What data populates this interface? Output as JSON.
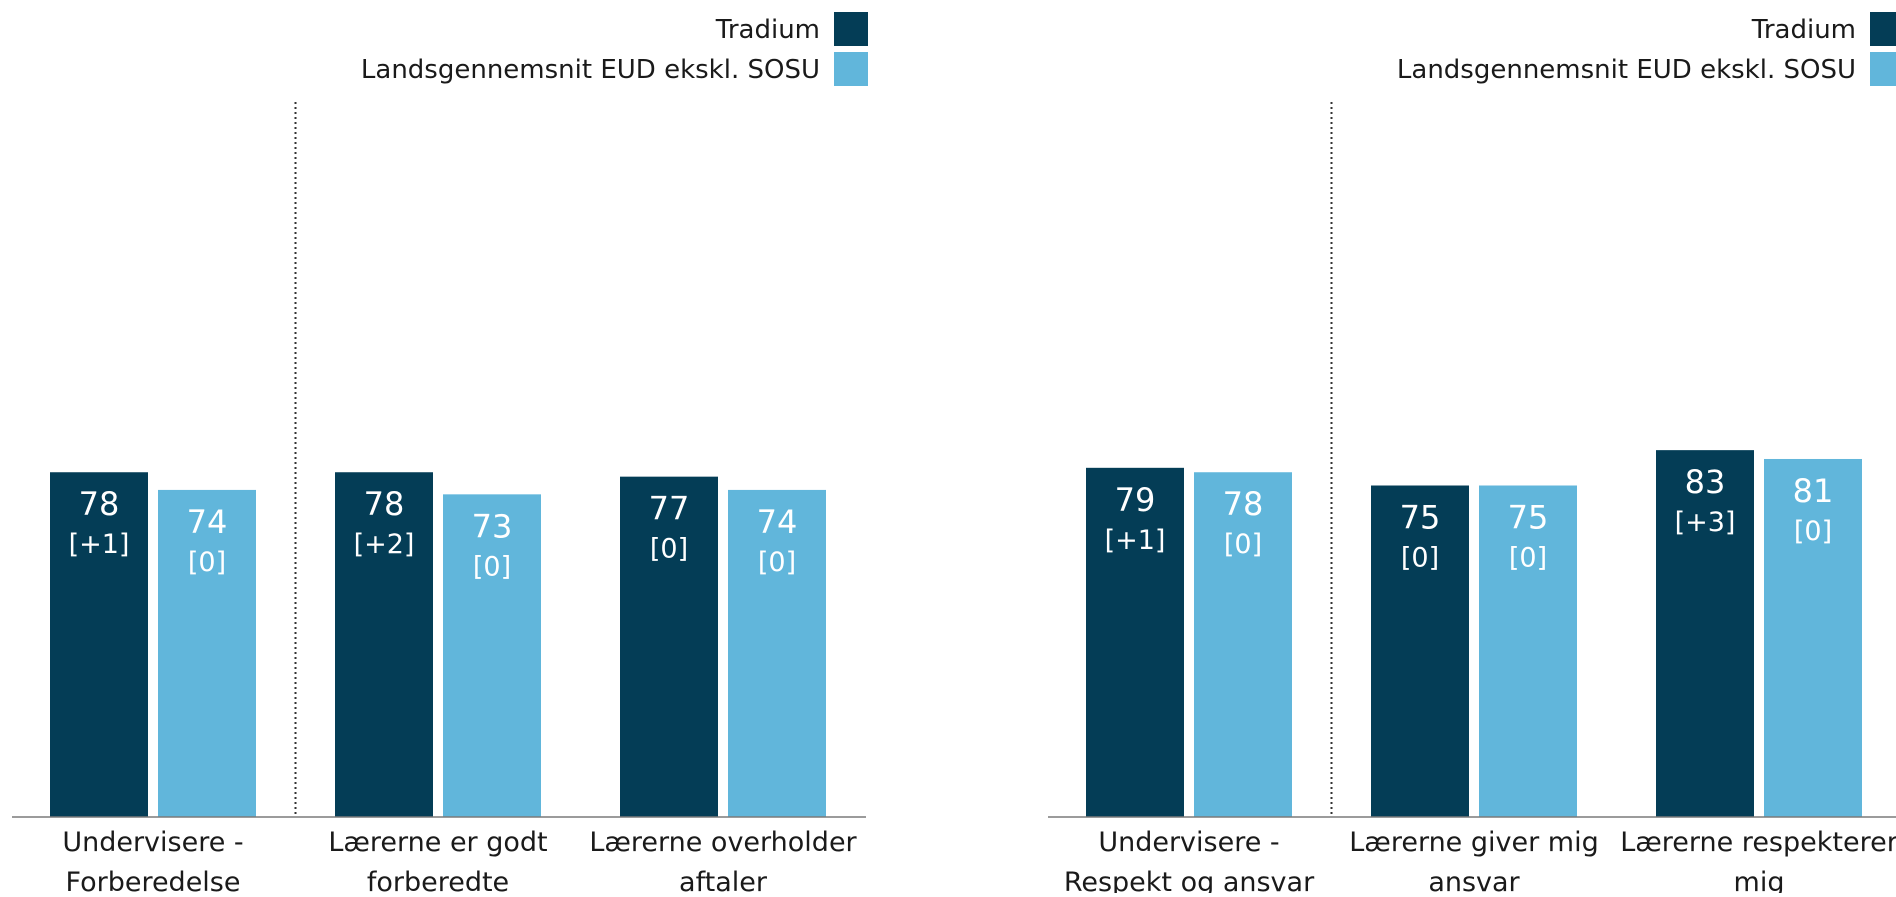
{
  "colors": {
    "school": "#043d56",
    "national": "#61b6db",
    "axis": "#7a7a7a",
    "text": "#1a1a1a",
    "divider": "#333333"
  },
  "chart_data": [
    {
      "type": "bar",
      "title": "",
      "xlabel": "",
      "ylabel": "",
      "ylim": [
        0,
        100
      ],
      "grid": false,
      "legend_position": "top-right",
      "categories": [
        "Undervisere - Forberedelse",
        "Lærerne er godt forberedte",
        "Lærerne overholder aftaler"
      ],
      "category_lines": [
        [
          "Undervisere -",
          "Forberedelse"
        ],
        [
          "Lærerne er godt",
          "forberedte"
        ],
        [
          "Lærerne overholder",
          "aftaler"
        ]
      ],
      "divider_after_index": 0,
      "series": [
        {
          "name": "Tradium",
          "values": [
            78,
            78,
            77
          ],
          "change_labels": [
            "[+1]",
            "[+2]",
            "[0]"
          ]
        },
        {
          "name": "Landsgennemsnit EUD ekskl. SOSU",
          "values": [
            74,
            73,
            74
          ],
          "change_labels": [
            "[0]",
            "[0]",
            "[0]"
          ]
        }
      ]
    },
    {
      "type": "bar",
      "title": "",
      "xlabel": "",
      "ylabel": "",
      "ylim": [
        0,
        100
      ],
      "grid": false,
      "legend_position": "top-right",
      "categories": [
        "Undervisere - Respekt og ansvar",
        "Lærerne giver mig ansvar",
        "Lærerne respekterer mig"
      ],
      "category_lines": [
        [
          "Undervisere -",
          "Respekt og ansvar"
        ],
        [
          "Lærerne giver mig",
          "ansvar"
        ],
        [
          "Lærerne respekterer",
          "mig"
        ]
      ],
      "divider_after_index": 0,
      "series": [
        {
          "name": "Tradium",
          "values": [
            79,
            75,
            83
          ],
          "change_labels": [
            "[+1]",
            "[0]",
            "[+3]"
          ]
        },
        {
          "name": "Landsgennemsnit EUD ekskl. SOSU",
          "values": [
            78,
            75,
            81
          ],
          "change_labels": [
            "[0]",
            "[0]",
            "[0]"
          ]
        }
      ]
    }
  ]
}
